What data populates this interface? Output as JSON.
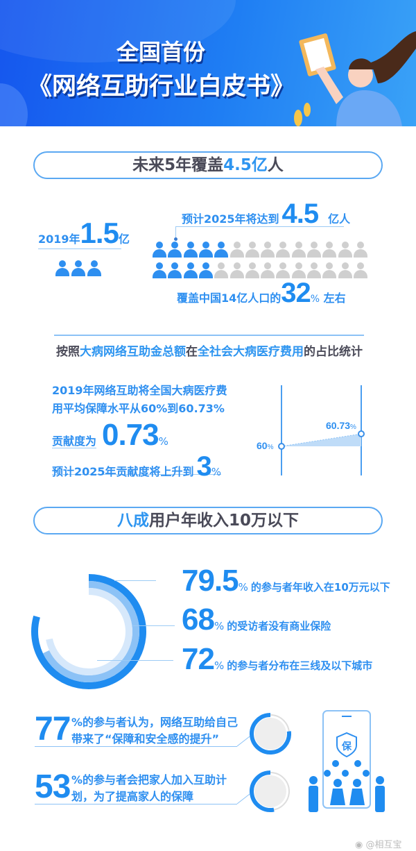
{
  "header": {
    "title_line1": "全国首份",
    "title_line2": "《网络互助行业白皮书》"
  },
  "section1": {
    "heading_prefix": "未来5年覆盖",
    "heading_highlight": "4.5亿",
    "heading_suffix": "人",
    "current": {
      "year_label": "2019年",
      "value": "1.5",
      "unit": "亿",
      "icons": 3
    },
    "forecast": {
      "prefix": "预计2025年将达到",
      "value": "4.5",
      "unit": "亿人"
    },
    "people_grid": {
      "columns": 14,
      "rows": 2,
      "highlighted_per_row": [
        5,
        4
      ],
      "highlight_color": "#2e8ff0",
      "base_color": "#cfcfcf"
    },
    "coverage": {
      "prefix": "覆盖中国14亿人口的",
      "value": "32",
      "unit": "%",
      "suffix": "左右"
    }
  },
  "section2": {
    "subtitle_parts": [
      {
        "text": "按照",
        "highlight": false
      },
      {
        "text": "大病网络互助金总额",
        "highlight": true
      },
      {
        "text": "在",
        "highlight": false
      },
      {
        "text": "全社会大病医疗费用",
        "highlight": true
      },
      {
        "text": "的占比统计",
        "highlight": false
      }
    ],
    "line1": "2019年网络互助将全国大病医疗费",
    "line2": "用平均保障水平从60%到60.73%",
    "contribution_label": "贡献度为",
    "contribution_value": "0.73",
    "contribution_unit": "%",
    "forecast_label": "预计2025年贡献度将上升到",
    "forecast_value": "3",
    "forecast_unit": "%",
    "chart": {
      "start_value": "60",
      "end_value": "60.73",
      "unit": "%"
    }
  },
  "section3": {
    "heading_highlight": "八成",
    "heading_rest": "用户年收入10万以下",
    "stats": [
      {
        "value": "79.5",
        "unit": "%",
        "text": "的参与者年收入在10万元以下"
      },
      {
        "value": "68",
        "unit": "%",
        "text": "的受访者没有商业保险"
      },
      {
        "value": "72",
        "unit": "%",
        "text": "的参与者分布在三线及以下城市"
      }
    ],
    "ring_colors": [
      "#1f8cf0",
      "#8cc2f6",
      "#d6e8fb"
    ]
  },
  "section4": {
    "items": [
      {
        "value": "77",
        "line1": "%的参与者认为，网络互助给自己",
        "line2": "带来了“保障和安全感的提升”",
        "percent": 77
      },
      {
        "value": "53",
        "line1": "%的参与者会把家人加入互助计",
        "line2": "划，为了提高家人的保障",
        "percent": 53
      }
    ],
    "shield_char": "保"
  },
  "watermark": "@相互宝"
}
